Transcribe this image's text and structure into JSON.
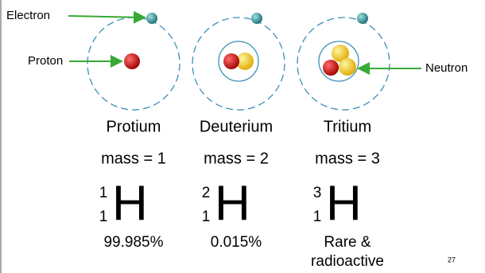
{
  "labels": {
    "electron": "Electron",
    "proton": "Proton",
    "neutron": "Neutron"
  },
  "isotopes": [
    {
      "name": "Protium",
      "mass": "mass = 1",
      "mass_number": 1,
      "atomic_number": 1,
      "symbol": "H",
      "abundance": "99.985%"
    },
    {
      "name": "Deuterium",
      "mass": "mass = 2",
      "mass_number": 2,
      "atomic_number": 1,
      "symbol": "H",
      "abundance": "0.015%"
    },
    {
      "name": "Tritium",
      "mass": "mass = 3",
      "mass_number": 3,
      "atomic_number": 1,
      "symbol": "H",
      "abundance": "Rare & radioactive"
    }
  ],
  "page_number": 27
}
